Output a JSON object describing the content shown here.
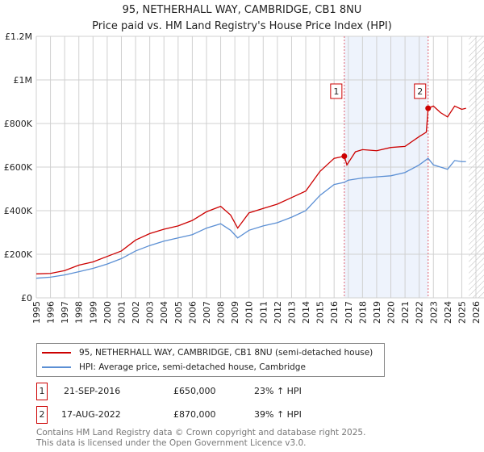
{
  "chart_data": {
    "type": "line",
    "title": "95, NETHERHALL WAY, CAMBRIDGE, CB1 8NU",
    "subtitle": "Price paid vs. HM Land Registry's House Price Index (HPI)",
    "xlim": [
      1995,
      2026
    ],
    "ylim": [
      0,
      1200000
    ],
    "x_ticks": [
      "1995",
      "1996",
      "1997",
      "1998",
      "1999",
      "2000",
      "2001",
      "2002",
      "2003",
      "2004",
      "2005",
      "2006",
      "2007",
      "2008",
      "2009",
      "2010",
      "2011",
      "2012",
      "2013",
      "2014",
      "2015",
      "2016",
      "2017",
      "2018",
      "2019",
      "2020",
      "2021",
      "2022",
      "2023",
      "2024",
      "2025",
      "2026"
    ],
    "y_ticks": [
      {
        "v": 0,
        "label": "£0"
      },
      {
        "v": 200000,
        "label": "£200K"
      },
      {
        "v": 400000,
        "label": "£400K"
      },
      {
        "v": 600000,
        "label": "£600K"
      },
      {
        "v": 800000,
        "label": "£800K"
      },
      {
        "v": 1000000,
        "label": "£1M"
      },
      {
        "v": 1200000,
        "label": "£1.2M"
      }
    ],
    "grid": true,
    "series": [
      {
        "name": "95, NETHERHALL WAY, CAMBRIDGE, CB1 8NU (semi-detached house)",
        "color": "#cc0000",
        "x": [
          1995,
          1996,
          1997,
          1998,
          1999,
          2000,
          2001,
          2002,
          2003,
          2004,
          2005,
          2006,
          2007,
          2008,
          2008.7,
          2009.2,
          2010,
          2011,
          2012,
          2013,
          2014,
          2015,
          2016,
          2016.72,
          2016.9,
          2017.5,
          2018,
          2019,
          2020,
          2021,
          2022,
          2022.5,
          2022.63,
          2023,
          2023.5,
          2024,
          2024.5,
          2025,
          2025.3
        ],
        "y": [
          110000,
          112000,
          125000,
          150000,
          165000,
          190000,
          215000,
          265000,
          295000,
          315000,
          330000,
          355000,
          395000,
          420000,
          380000,
          320000,
          390000,
          410000,
          430000,
          460000,
          490000,
          580000,
          640000,
          650000,
          610000,
          670000,
          680000,
          675000,
          690000,
          695000,
          740000,
          760000,
          870000,
          880000,
          850000,
          830000,
          880000,
          865000,
          870000
        ]
      },
      {
        "name": "HPI: Average price, semi-detached house, Cambridge",
        "color": "#5b8fd4",
        "x": [
          1995,
          1996,
          1997,
          1998,
          1999,
          2000,
          2001,
          2002,
          2003,
          2004,
          2005,
          2006,
          2007,
          2008,
          2008.7,
          2009.2,
          2010,
          2011,
          2012,
          2013,
          2014,
          2015,
          2016,
          2016.72,
          2017,
          2018,
          2019,
          2020,
          2021,
          2022,
          2022.63,
          2023,
          2023.5,
          2024,
          2024.5,
          2025,
          2025.3
        ],
        "y": [
          90000,
          95000,
          105000,
          120000,
          135000,
          155000,
          180000,
          215000,
          240000,
          260000,
          275000,
          290000,
          320000,
          340000,
          310000,
          275000,
          310000,
          330000,
          345000,
          370000,
          400000,
          470000,
          520000,
          530000,
          540000,
          550000,
          555000,
          560000,
          575000,
          610000,
          640000,
          610000,
          600000,
          590000,
          630000,
          625000,
          625000
        ]
      }
    ],
    "annotations": [
      {
        "label": "1",
        "x": 2016.72,
        "y": 650000
      },
      {
        "label": "2",
        "x": 2022.63,
        "y": 870000
      }
    ],
    "shaded_range": [
      2016.72,
      2022.63
    ],
    "hatched_from": 2025.5
  },
  "legend": {
    "red": "95, NETHERHALL WAY, CAMBRIDGE, CB1 8NU (semi-detached house)",
    "blue": "HPI: Average price, semi-detached house, Cambridge"
  },
  "transactions": [
    {
      "num": "1",
      "date": "21-SEP-2016",
      "price": "£650,000",
      "hpi": "23% ↑ HPI"
    },
    {
      "num": "2",
      "date": "17-AUG-2022",
      "price": "£870,000",
      "hpi": "39% ↑ HPI"
    }
  ],
  "footer": {
    "line1": "Contains HM Land Registry data © Crown copyright and database right 2025.",
    "line2": "This data is licensed under the Open Government Licence v3.0."
  }
}
